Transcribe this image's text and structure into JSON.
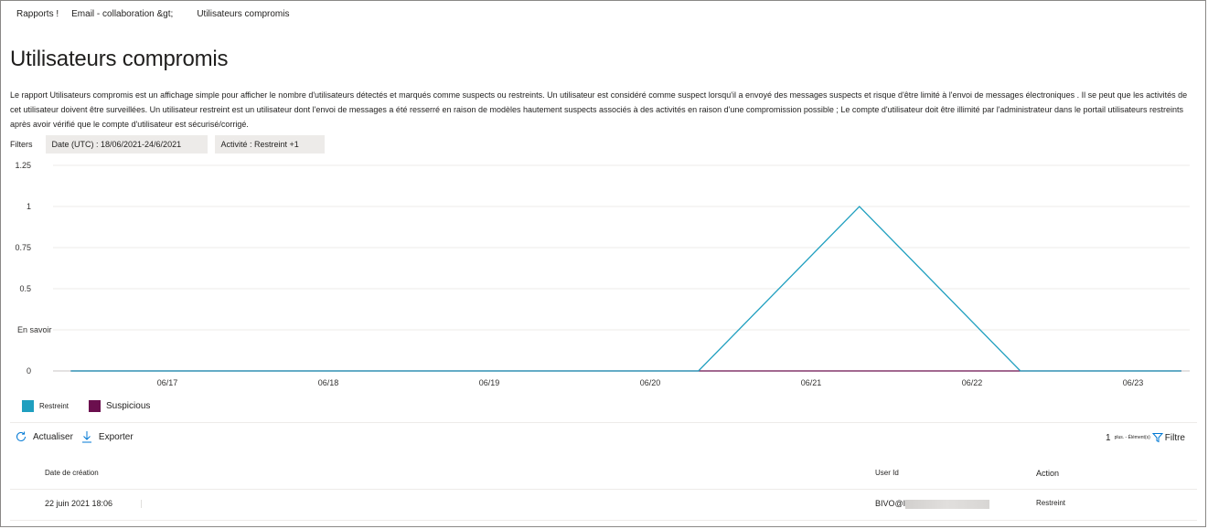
{
  "breadcrumb": [
    "Rapports !",
    "Email - collaboration &gt;",
    "Utilisateurs compromis"
  ],
  "page_title": "Utilisateurs compromis",
  "description": "Le rapport Utilisateurs compromis est un affichage simple pour afficher le nombre d'utilisateurs détectés et marqués comme suspects ou restreints. Un utilisateur est considéré comme suspect lorsqu'il a envoyé des messages suspects et risque d'être limité à l'envoi de messages électroniques . Il se peut que les activités de cet utilisateur doivent être surveillées. Un utilisateur restreint est un utilisateur dont l'envoi de messages a été resserré en raison de modèles hautement suspects associés à des activités en raison d'une compromission possible ; Le compte d'utilisateur doit être illimité par l'administrateur dans le portail utilisateurs restreints après avoir vérifié que le compte d'utilisateur est sécurisé/corrigé.",
  "filters": {
    "label": "Filters",
    "date_chip": "Date (UTC) : 18/06/2021-24/6/2021",
    "activity_chip": "Activité : Restreint +1"
  },
  "chart_data": {
    "type": "line",
    "x": [
      "06/17",
      "06/18",
      "06/19",
      "06/20",
      "06/21",
      "06/22",
      "06/23"
    ],
    "y_ticks": [
      "1.25",
      "1",
      "0.75",
      "0.5",
      "En savoir",
      "0"
    ],
    "ylim": [
      0,
      1.25
    ],
    "grid": true,
    "legend_position": "bottom-left",
    "series": [
      {
        "name": "Restreint",
        "color": "#1f9fbf",
        "points": [
          [
            -0.6,
            0
          ],
          [
            3.3,
            0
          ],
          [
            4.3,
            1
          ],
          [
            5.3,
            0
          ],
          [
            6.3,
            0
          ]
        ]
      },
      {
        "name": "Suspicious",
        "color": "#6b0f4e",
        "points": [
          [
            -0.6,
            0
          ],
          [
            6.3,
            0
          ]
        ]
      }
    ]
  },
  "toolbar": {
    "refresh_label": "Actualiser",
    "export_label": "Exporter",
    "count": "1",
    "count_suffix": "plus. - Élément(s)",
    "filter_label": "Filtre"
  },
  "table": {
    "headers": {
      "created": "Date de création",
      "user_id": "User Id",
      "action": "Action"
    },
    "rows": [
      {
        "created": "22 juin 2021 18:06",
        "user_id": "BIVO@I",
        "action": "Restreint"
      }
    ]
  }
}
